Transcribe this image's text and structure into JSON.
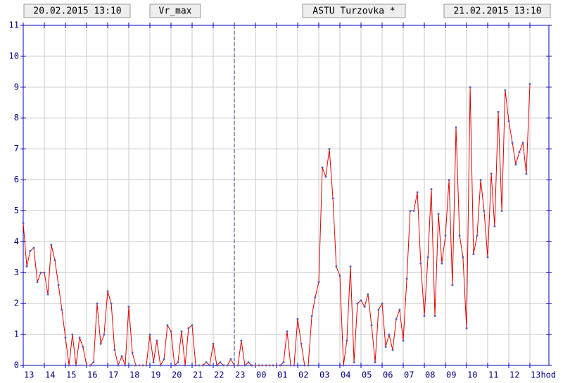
{
  "header": {
    "start": "20.02.2015 13:10",
    "variable": "Vr_max",
    "station": "ASTU Turzovka *",
    "end": "21.02.2015 13:10"
  },
  "chart_data": {
    "type": "line",
    "series": [
      {
        "color": "#e00000",
        "marker_color": "#6060c0",
        "x": [
          13,
          13.17,
          13.33,
          13.5,
          13.67,
          13.83,
          14,
          14.17,
          14.33,
          14.5,
          14.67,
          14.83,
          15,
          15.17,
          15.33,
          15.5,
          15.67,
          15.83,
          16,
          16.17,
          16.33,
          16.5,
          16.67,
          16.83,
          17,
          17.17,
          17.33,
          17.5,
          17.67,
          17.83,
          18,
          18.17,
          18.33,
          18.5,
          18.67,
          18.83,
          19,
          19.17,
          19.33,
          19.5,
          19.67,
          19.83,
          20,
          20.17,
          20.33,
          20.5,
          20.67,
          20.83,
          21,
          21.17,
          21.33,
          21.5,
          21.67,
          21.83,
          22,
          22.17,
          22.33,
          22.5,
          22.67,
          22.83,
          23,
          23.17,
          23.33,
          23.5,
          23.67,
          23.83,
          24,
          24.17,
          24.33,
          24.5,
          24.67,
          24.83,
          25,
          25.17,
          25.33,
          25.5,
          25.67,
          25.83,
          26,
          26.17,
          26.33,
          26.5,
          26.67,
          26.83,
          27,
          27.17,
          27.33,
          27.5,
          27.67,
          27.83,
          28,
          28.17,
          28.33,
          28.5,
          28.67,
          28.83,
          29,
          29.17,
          29.33,
          29.5,
          29.67,
          29.83,
          30,
          30.17,
          30.33,
          30.5,
          30.67,
          30.83,
          31,
          31.17,
          31.33,
          31.5,
          31.67,
          31.83,
          32,
          32.17,
          32.33,
          32.5,
          32.67,
          32.83,
          33,
          33.17,
          33.33,
          33.5,
          33.67,
          33.83,
          34,
          34.17,
          34.33,
          34.5,
          34.67,
          34.83,
          35,
          35.17,
          35.33,
          35.5,
          35.67,
          35.83,
          36,
          36.17,
          36.33,
          36.5,
          36.67,
          36.83,
          37
        ],
        "values": [
          4.6,
          3.2,
          3.7,
          3.8,
          2.7,
          3.0,
          3.0,
          2.3,
          3.9,
          3.4,
          2.6,
          1.8,
          0.9,
          0,
          1.0,
          0,
          0.9,
          0.6,
          0,
          0,
          0.1,
          2.0,
          0.7,
          1.0,
          2.4,
          2.0,
          0.5,
          0,
          0.3,
          0,
          1.9,
          0.4,
          0,
          0,
          0,
          0,
          1.0,
          0.1,
          0.8,
          0,
          0.2,
          1.3,
          1.1,
          0,
          0.1,
          1.1,
          0,
          1.2,
          1.3,
          0,
          0,
          0,
          0.1,
          0,
          0.7,
          0,
          0.1,
          0,
          0,
          0.2,
          0,
          0,
          0.8,
          0,
          0.1,
          0,
          0,
          0,
          0,
          0,
          0,
          0,
          0,
          0,
          0.1,
          1.1,
          0,
          0,
          1.5,
          0.7,
          0,
          0,
          1.6,
          2.2,
          2.7,
          6.4,
          6.1,
          7.0,
          5.4,
          3.2,
          2.9,
          0,
          0.8,
          3.2,
          0.1,
          2.0,
          2.1,
          1.9,
          2.3,
          1.3,
          0.1,
          1.8,
          2.0,
          0.6,
          1.0,
          0.5,
          1.5,
          1.8,
          0.8,
          2.8,
          5.0,
          5.0,
          5.6,
          3.3,
          1.6,
          3.5,
          5.7,
          1.6,
          4.9,
          3.3,
          4.2,
          6.0,
          2.6,
          7.7,
          4.2,
          3.5,
          1.2,
          9.0,
          3.6,
          4.2,
          6.0,
          5.0,
          3.5,
          6.2,
          4.5,
          8.2,
          5.0,
          8.9,
          7.9,
          7.2,
          6.5,
          6.9,
          7.2,
          6.2,
          9.1
        ]
      }
    ],
    "xlim": [
      13,
      37
    ],
    "xticks": [
      13,
      14,
      15,
      16,
      17,
      18,
      19,
      20,
      21,
      22,
      23,
      {
        "value": 24,
        "label": "00"
      },
      {
        "value": 25,
        "label": "01"
      },
      {
        "value": 26,
        "label": "02"
      },
      {
        "value": 27,
        "label": "03"
      },
      {
        "value": 28,
        "label": "04"
      },
      {
        "value": 29,
        "label": "05"
      },
      {
        "value": 30,
        "label": "06"
      },
      {
        "value": 31,
        "label": "07"
      },
      {
        "value": 32,
        "label": "08"
      },
      {
        "value": 33,
        "label": "09"
      },
      {
        "value": 34,
        "label": "10"
      },
      {
        "value": 35,
        "label": "11"
      },
      {
        "value": 36,
        "label": "12"
      },
      {
        "value": 37,
        "label": "13hod"
      }
    ],
    "ylim": [
      0,
      11
    ],
    "yticks": [
      0,
      1,
      2,
      3,
      4,
      5,
      6,
      7,
      8,
      9,
      10,
      11
    ],
    "marker_x": 23,
    "grid": true
  }
}
